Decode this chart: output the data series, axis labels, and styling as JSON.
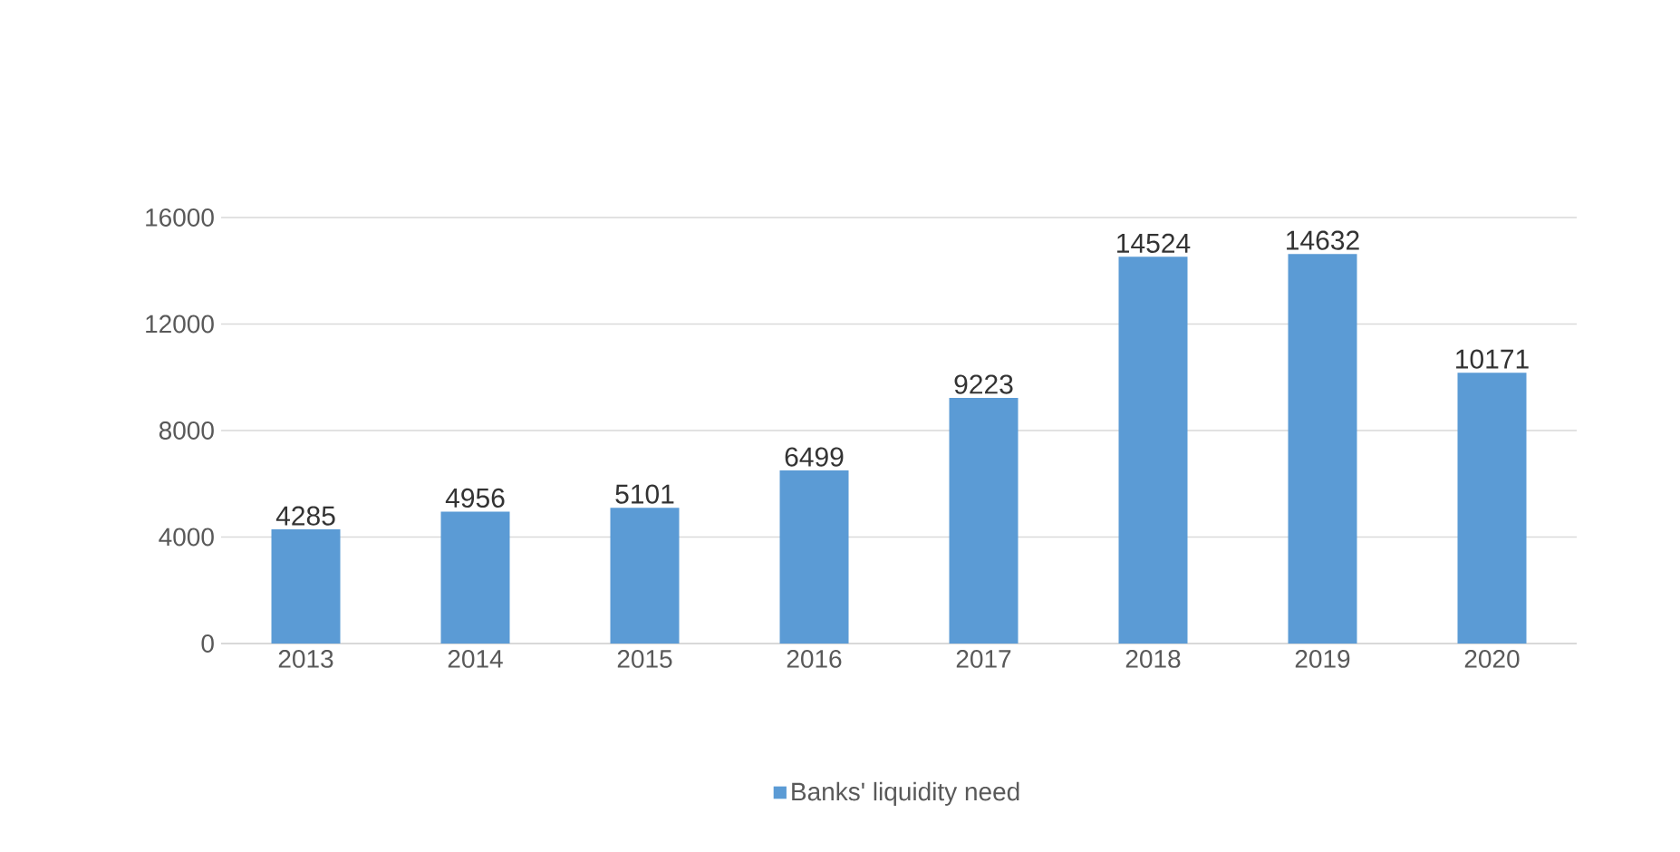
{
  "chart_data": {
    "type": "bar",
    "categories": [
      "2013",
      "2014",
      "2015",
      "2016",
      "2017",
      "2018",
      "2019",
      "2020"
    ],
    "series": [
      {
        "name": "Banks' liquidity need",
        "color": "#5b9bd5",
        "values": [
          4285,
          4956,
          5101,
          6499,
          9223,
          14524,
          14632,
          10171
        ]
      }
    ],
    "ylim": [
      0,
      16000
    ],
    "yticks": [
      0,
      4000,
      8000,
      12000,
      16000
    ],
    "grid": "y",
    "legend": "bottom",
    "data_labels": true
  }
}
